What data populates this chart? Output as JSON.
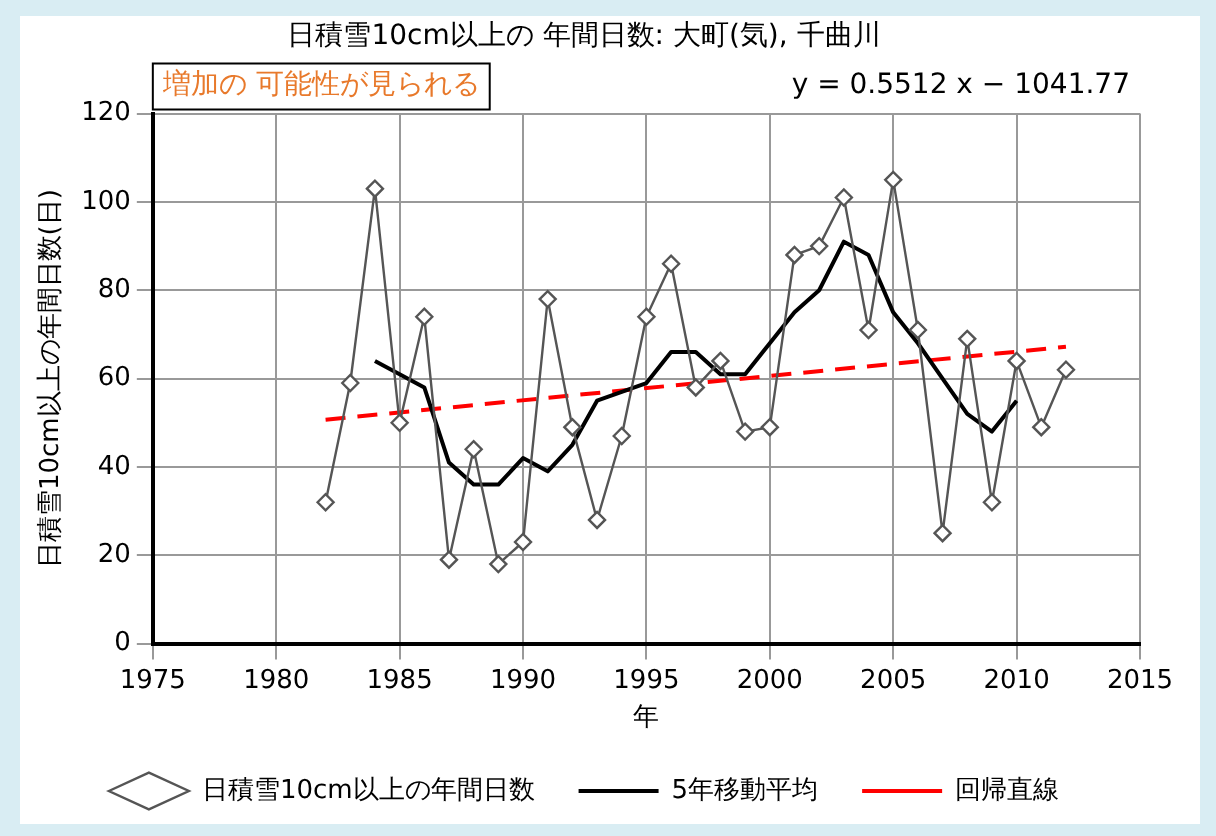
{
  "chart_data": {
    "type": "line",
    "title": "日積雪10cm以上の 年間日数: 大町(気), 千曲川",
    "xlabel": "年",
    "ylabel": "日積雪10cm以上の年間日数(日)",
    "annotations": [
      "増加の 可能性が見られる",
      "y = 0.5512 x − 1041.77"
    ],
    "xlim": [
      1975,
      2015
    ],
    "xticks": [
      1975,
      1980,
      1985,
      1990,
      1995,
      2000,
      2005,
      2010,
      2015
    ],
    "ylim": [
      0,
      120
    ],
    "yticks": [
      0,
      20,
      40,
      60,
      80,
      100,
      120
    ],
    "grid": true,
    "legend": "bottom",
    "series": [
      {
        "name": "日積雪10cm以上の年間日数",
        "color": "#555555",
        "marker": "diamond",
        "line_style": "solid",
        "x": [
          1982,
          1983,
          1984,
          1985,
          1986,
          1987,
          1988,
          1989,
          1990,
          1991,
          1992,
          1993,
          1994,
          1995,
          1996,
          1997,
          1998,
          1999,
          2000,
          2001,
          2002,
          2003,
          2004,
          2005,
          2006,
          2007,
          2008,
          2009,
          2010,
          2011,
          2012
        ],
        "values": [
          32,
          59,
          103,
          50,
          74,
          19,
          44,
          18,
          23,
          78,
          49,
          28,
          47,
          74,
          86,
          58,
          64,
          48,
          49,
          88,
          90,
          101,
          71,
          105,
          71,
          25,
          69,
          32,
          64,
          49,
          62
        ]
      },
      {
        "name": "5年移動平均",
        "color": "#000000",
        "marker": "none",
        "line_style": "solid",
        "x": [
          1984,
          1985,
          1986,
          1987,
          1988,
          1989,
          1990,
          1991,
          1992,
          1993,
          1994,
          1995,
          1996,
          1997,
          1998,
          1999,
          2000,
          2001,
          2002,
          2003,
          2004,
          2005,
          2006,
          2007,
          2008,
          2009,
          2010
        ],
        "values": [
          64,
          61,
          58,
          41,
          36,
          36,
          42,
          39,
          45,
          55,
          57,
          59,
          66,
          66,
          61,
          61,
          68,
          75,
          80,
          91,
          88,
          75,
          68,
          60,
          52,
          48,
          55
        ]
      },
      {
        "name": "回帰直線",
        "color": "#ff0000",
        "marker": "none",
        "line_style": "dashed",
        "x": [
          1982,
          2012
        ],
        "values": [
          50.7,
          67.2
        ]
      }
    ]
  }
}
